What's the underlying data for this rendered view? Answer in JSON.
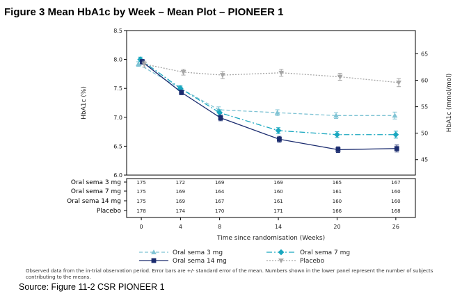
{
  "figure_title": "Figure 3 Mean HbA1c by Week – Mean Plot – PIONEER 1",
  "source": "Source: Figure 11-2 CSR PIONEER 1",
  "footnote": "Observed data from the in-trial observation period. Error bars are +/- standard error of the mean. Numbers shown in the lower panel represent the number of subjects contributing to the means.",
  "chart_data": {
    "type": "line",
    "title": "",
    "xlabel": "Time since randomisation (Weeks)",
    "ylabel": "HbA1c (%)",
    "y2label": "HbA1c (mmol/mol)",
    "x": [
      0,
      4,
      8,
      14,
      20,
      26
    ],
    "x_ticks": [
      0,
      4,
      8,
      14,
      20,
      26
    ],
    "xlim": [
      -1.5,
      28
    ],
    "ylim": [
      6.0,
      8.5
    ],
    "y_ticks": [
      6.0,
      6.5,
      7.0,
      7.5,
      8.0,
      8.5
    ],
    "y_tick_labels": [
      "6.0",
      "6.5",
      "7.0",
      "7.5",
      "8.0",
      "8.5"
    ],
    "y2_ticks": [
      45,
      50,
      55,
      60,
      65
    ],
    "grid": false,
    "legend_position": "bottom",
    "series": [
      {
        "name": "Oral sema 3 mg",
        "x": [
          -0.3,
          3.9,
          7.9,
          13.9,
          19.9,
          25.9
        ],
        "values": [
          7.92,
          7.51,
          7.13,
          7.08,
          7.03,
          7.03
        ],
        "err": [
          0.04,
          0.04,
          0.05,
          0.05,
          0.05,
          0.06
        ],
        "color": "#7fc3d4",
        "dash": "5,3",
        "marker": "triangle-up"
      },
      {
        "name": "Oral sema 7 mg",
        "x": [
          -0.1,
          4.0,
          8.0,
          14.0,
          20.0,
          26.0
        ],
        "values": [
          8.0,
          7.5,
          7.08,
          6.77,
          6.7,
          6.7
        ],
        "err": [
          0.04,
          0.04,
          0.05,
          0.05,
          0.05,
          0.06
        ],
        "color": "#19a7bf",
        "dash": "8,3,2,3",
        "marker": "diamond"
      },
      {
        "name": "Oral sema 14 mg",
        "x": [
          0.1,
          4.1,
          8.1,
          14.1,
          20.1,
          26.1
        ],
        "values": [
          7.96,
          7.43,
          6.99,
          6.62,
          6.44,
          6.46
        ],
        "err": [
          0.04,
          0.04,
          0.05,
          0.05,
          0.05,
          0.06
        ],
        "color": "#1a2b6e",
        "dash": "",
        "marker": "square"
      },
      {
        "name": "Placebo",
        "x": [
          0.3,
          4.3,
          8.3,
          14.3,
          20.3,
          26.3
        ],
        "values": [
          7.92,
          7.78,
          7.73,
          7.77,
          7.7,
          7.6
        ],
        "err": [
          0.05,
          0.05,
          0.06,
          0.06,
          0.06,
          0.07
        ],
        "color": "#a6a6a6",
        "dash": "2,2",
        "marker": "triangle-down"
      }
    ],
    "risk_table": {
      "rows": [
        {
          "label": "Oral sema 3 mg",
          "counts": [
            "175",
            "172",
            "169",
            "169",
            "165",
            "167"
          ]
        },
        {
          "label": "Oral sema 7 mg",
          "counts": [
            "175",
            "169",
            "164",
            "160",
            "161",
            "160"
          ]
        },
        {
          "label": "Oral sema 14 mg",
          "counts": [
            "175",
            "169",
            "167",
            "161",
            "160",
            "160"
          ]
        },
        {
          "label": "Placebo",
          "counts": [
            "178",
            "174",
            "170",
            "171",
            "166",
            "168"
          ]
        }
      ]
    }
  }
}
